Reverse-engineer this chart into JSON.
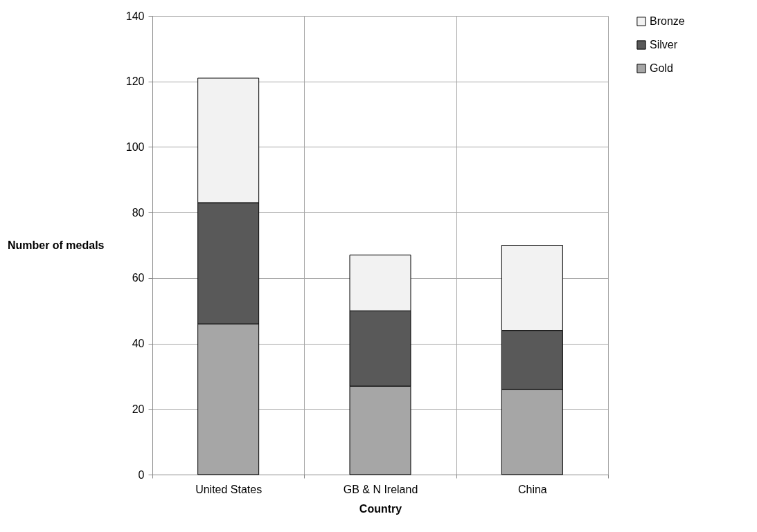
{
  "chart_data": {
    "type": "bar",
    "stacked": true,
    "xlabel": "Country",
    "ylabel": "Number of medals",
    "categories": [
      "United States",
      "GB & N Ireland",
      "China"
    ],
    "series": [
      {
        "name": "Gold",
        "color": "#a6a6a6",
        "values": [
          46,
          27,
          26
        ]
      },
      {
        "name": "Silver",
        "color": "#595959",
        "values": [
          37,
          23,
          18
        ]
      },
      {
        "name": "Bronze",
        "color": "#f2f2f2",
        "values": [
          38,
          17,
          26
        ]
      }
    ],
    "ylim": [
      0,
      140
    ],
    "yticks": [
      0,
      20,
      40,
      60,
      80,
      100,
      120,
      140
    ],
    "grid": true,
    "legend": "right"
  }
}
